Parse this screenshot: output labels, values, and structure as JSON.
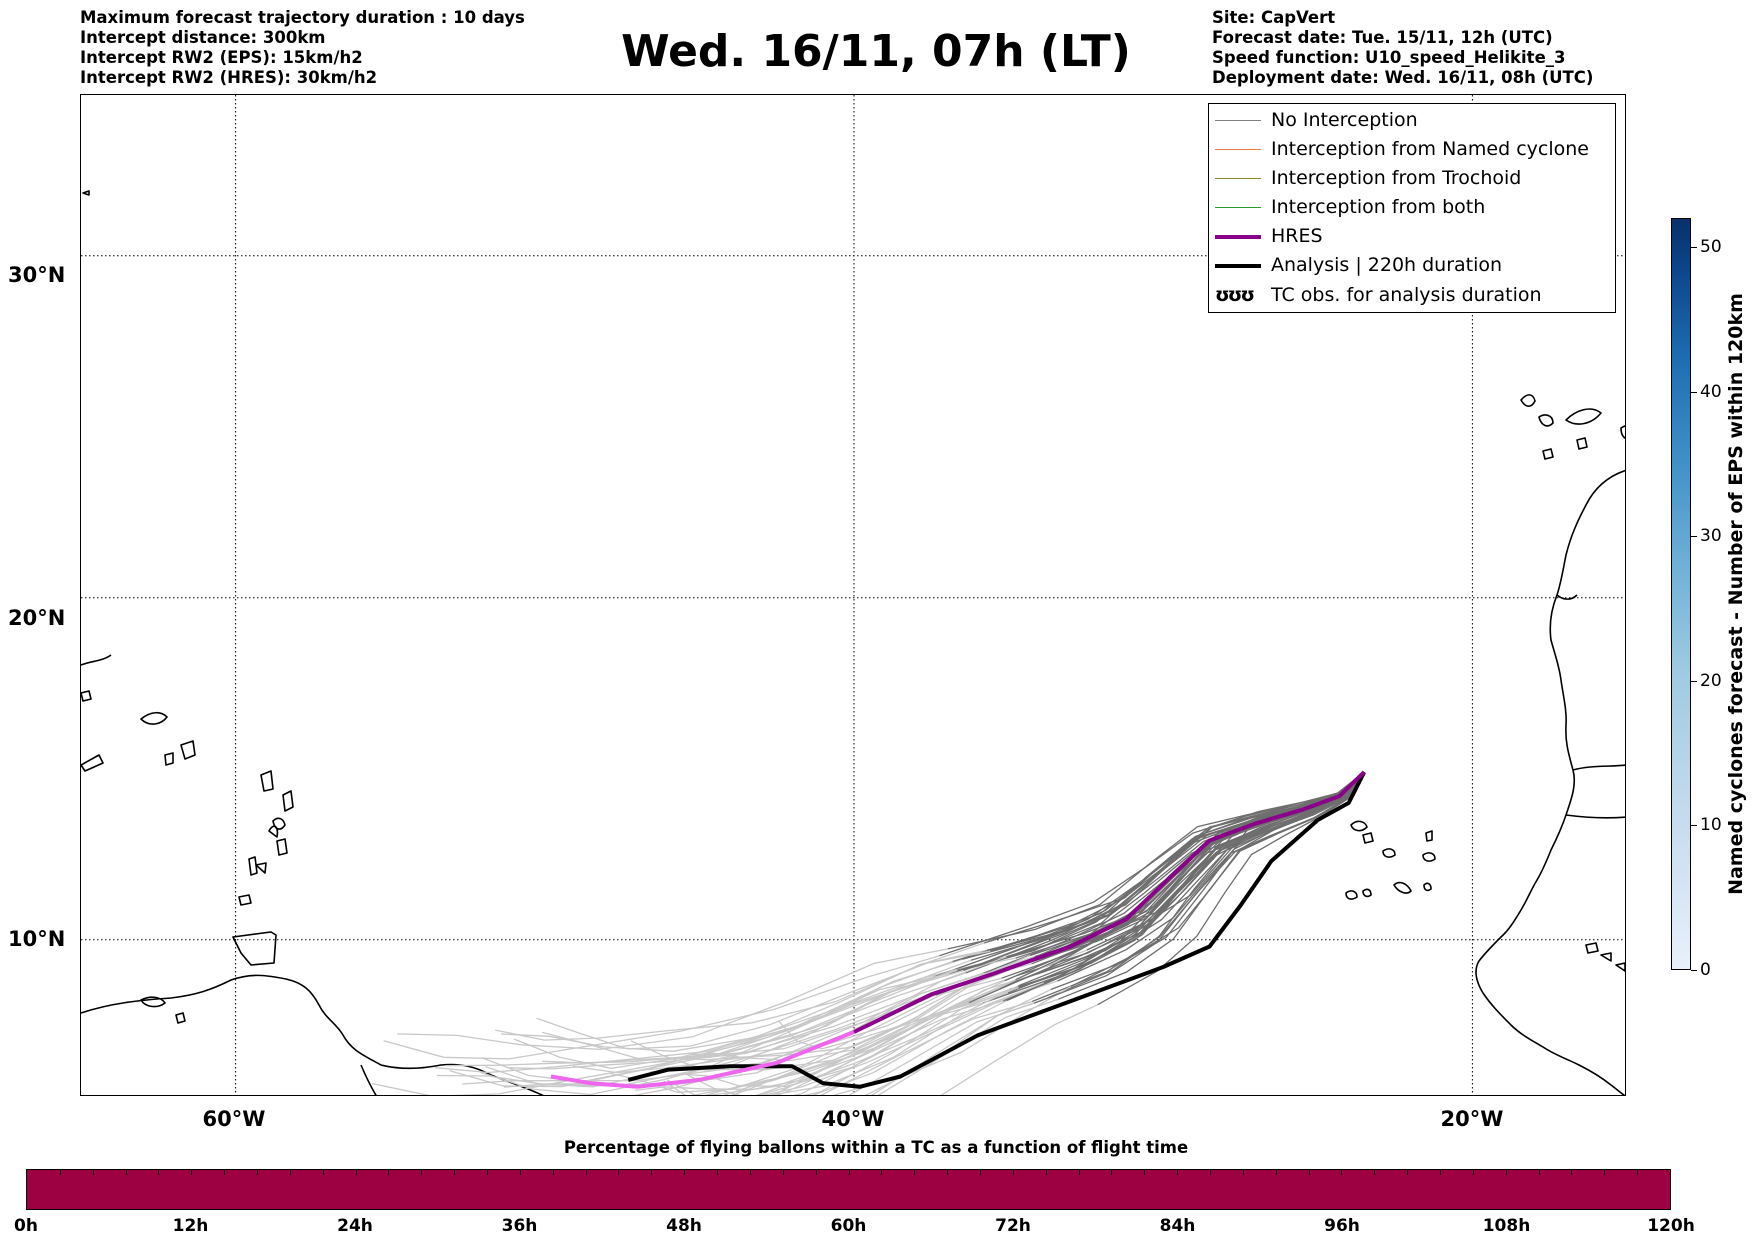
{
  "title": "Wed. 16/11, 07h (LT)",
  "info_left": [
    "Maximum forecast trajectory duration : 10 days",
    "Intercept distance: 300km",
    "Intercept RW2 (EPS):  15km/h2",
    "Intercept RW2 (HRES): 30km/h2"
  ],
  "info_right": [
    "Site: CapVert",
    "Forecast date: Tue. 15/11, 12h (UTC)",
    "Speed function: U10_speed_Helikite_3",
    "Deployment date: Wed. 16/11, 08h (UTC)"
  ],
  "map": {
    "lat_labels": [
      "30°N",
      "20°N",
      "10°N"
    ],
    "lon_labels": [
      "60°W",
      "40°W",
      "20°W"
    ],
    "lat_lines": [
      30,
      20,
      10
    ],
    "lon_lines": [
      -60,
      -40,
      -20
    ],
    "lon_range": [
      -65,
      -15
    ],
    "lat_range": [
      5.4,
      34.7
    ],
    "grid": true
  },
  "legend": {
    "placement": "top-right",
    "items": [
      {
        "label": "No Interception",
        "color": "#808080",
        "style": "thin"
      },
      {
        "label": "Interception from Named cyclone",
        "color": "#f07840",
        "style": "thin"
      },
      {
        "label": "Interception from Trochoid",
        "color": "#8b8b2a",
        "style": "thin"
      },
      {
        "label": "Interception from both",
        "color": "#2a9a2a",
        "style": "thin"
      },
      {
        "label": "HRES",
        "color": "#8b008b",
        "style": "thick"
      },
      {
        "label": "Analysis | 220h duration",
        "color": "#000000",
        "style": "thick"
      },
      {
        "label": "TC obs. for analysis duration",
        "color": "#000000",
        "style": "glyph",
        "glyph": "ʊʊʊ"
      }
    ]
  },
  "chart_data": {
    "type": "map-trajectories",
    "origin": {
      "lat": 14.9,
      "lon": -23.5
    },
    "hres": [
      [
        -23.5,
        14.9
      ],
      [
        -24.3,
        14.2
      ],
      [
        -25.5,
        13.8
      ],
      [
        -27.0,
        13.4
      ],
      [
        -28.5,
        12.9
      ],
      [
        -29.8,
        11.8
      ],
      [
        -31.2,
        10.6
      ],
      [
        -33.0,
        9.8
      ],
      [
        -35.5,
        9.0
      ],
      [
        -37.5,
        8.4
      ],
      [
        -40.0,
        7.3
      ],
      [
        -42.5,
        6.4
      ],
      [
        -45.0,
        5.9
      ],
      [
        -47.0,
        5.7
      ],
      [
        -48.5,
        5.8
      ],
      [
        -49.8,
        6.0
      ]
    ],
    "analysis": [
      [
        -23.5,
        14.9
      ],
      [
        -24.0,
        14.0
      ],
      [
        -25.0,
        13.5
      ],
      [
        -26.5,
        12.3
      ],
      [
        -27.5,
        11.0
      ],
      [
        -28.5,
        9.8
      ],
      [
        -30.0,
        9.2
      ],
      [
        -33.0,
        8.2
      ],
      [
        -36.0,
        7.2
      ],
      [
        -38.5,
        6.0
      ],
      [
        -39.8,
        5.7
      ],
      [
        -41.0,
        5.8
      ],
      [
        -42.0,
        6.3
      ],
      [
        -44.0,
        6.3
      ],
      [
        -46.0,
        6.2
      ],
      [
        -47.3,
        5.9
      ]
    ],
    "ensemble_member_count": 50,
    "colorbar_right": {
      "label": "Named cyclones forecast - Number of EPS within 120km",
      "ticks": [
        0,
        10,
        20,
        30,
        40,
        50
      ],
      "range": [
        0,
        52
      ]
    },
    "colorbar_bottom": {
      "label": "Percentage of flying ballons within a TC as a function of flight time",
      "ticks": [
        "0h",
        "12h",
        "24h",
        "36h",
        "48h",
        "60h",
        "72h",
        "84h",
        "96h",
        "108h",
        "120h"
      ],
      "color": "#9e0142"
    }
  }
}
